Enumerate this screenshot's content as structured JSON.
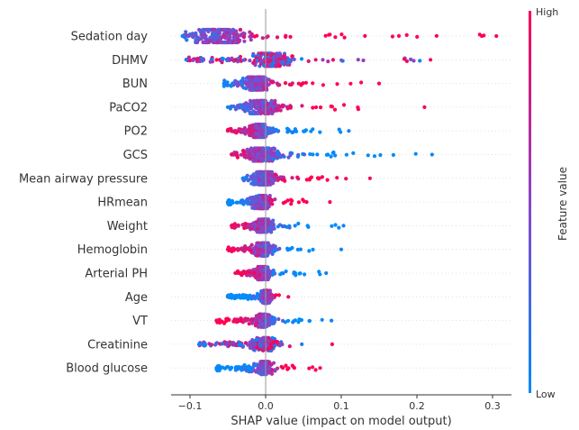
{
  "chart_data": {
    "type": "scatter",
    "subtype": "shap-beeswarm",
    "title": "",
    "xlabel": "SHAP value (impact on model output)",
    "ylabel": "",
    "xlim": [
      -0.125,
      0.325
    ],
    "x_ticks": [
      -0.1,
      0.0,
      0.1,
      0.2,
      0.3
    ],
    "x_tick_labels": [
      "−0.1",
      "0.0",
      "0.1",
      "0.2",
      "0.3"
    ],
    "zero_line": true,
    "grid": false,
    "colorbar": {
      "title": "Feature value",
      "high_label": "High",
      "low_label": "Low",
      "low_color": "#008bfb",
      "mid_color": "#8a45c9",
      "high_color": "#ff0052",
      "placement": "right"
    },
    "features": [
      {
        "name": "Sedation day",
        "min": -0.11,
        "max": 0.305,
        "center": -0.062,
        "low_side": "left",
        "spread": 0.7
      },
      {
        "name": "DHMV",
        "min": -0.105,
        "max": 0.218,
        "center": 0.008,
        "low_side": "mixed",
        "spread": 0.45
      },
      {
        "name": "BUN",
        "min": -0.055,
        "max": 0.15,
        "center": -0.012,
        "low_side": "left",
        "spread": 0.4
      },
      {
        "name": "PaCO2",
        "min": -0.05,
        "max": 0.21,
        "center": -0.005,
        "low_side": "left",
        "spread": 0.4
      },
      {
        "name": "PO2",
        "min": -0.05,
        "max": 0.11,
        "center": -0.008,
        "low_side": "right",
        "spread": 0.4
      },
      {
        "name": "GCS",
        "min": -0.045,
        "max": 0.22,
        "center": -0.005,
        "low_side": "right",
        "spread": 0.4
      },
      {
        "name": "Mean airway pressure",
        "min": -0.03,
        "max": 0.138,
        "center": -0.002,
        "low_side": "left",
        "spread": 0.4
      },
      {
        "name": "HRmean",
        "min": -0.05,
        "max": 0.085,
        "center": -0.005,
        "low_side": "left",
        "spread": 0.35
      },
      {
        "name": "Weight",
        "min": -0.045,
        "max": 0.103,
        "center": -0.004,
        "low_side": "right",
        "spread": 0.35
      },
      {
        "name": "Hemoglobin",
        "min": -0.05,
        "max": 0.1,
        "center": -0.004,
        "low_side": "right",
        "spread": 0.35
      },
      {
        "name": "Arterial PH",
        "min": -0.04,
        "max": 0.08,
        "center": -0.003,
        "low_side": "right",
        "spread": 0.35
      },
      {
        "name": "Age",
        "min": -0.05,
        "max": 0.03,
        "center": 0.0,
        "low_side": "left",
        "spread": 0.3
      },
      {
        "name": "VT",
        "min": -0.065,
        "max": 0.087,
        "center": -0.003,
        "low_side": "right",
        "spread": 0.3
      },
      {
        "name": "Creatinine",
        "min": -0.088,
        "max": 0.088,
        "center": -0.002,
        "low_side": "mixed",
        "spread": 0.3
      },
      {
        "name": "Blood glucose",
        "min": -0.065,
        "max": 0.072,
        "center": -0.002,
        "low_side": "left",
        "spread": 0.3
      }
    ]
  }
}
